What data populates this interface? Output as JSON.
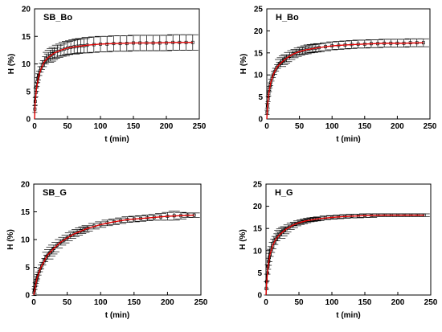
{
  "chart_data": [
    {
      "type": "scatter",
      "title": "SB_Bo",
      "xlabel": "t (min)",
      "ylabel": "H (%)",
      "xlim": [
        0,
        250
      ],
      "ylim": [
        0,
        20
      ],
      "xticks": [
        0,
        50,
        100,
        150,
        200,
        250
      ],
      "yticks": [
        0,
        5,
        10,
        15,
        20
      ],
      "colors": {
        "points": "#000000",
        "fit": "#e00000"
      },
      "x": [
        0.5,
        1,
        2,
        3,
        4,
        5,
        6,
        8,
        10,
        12,
        15,
        18,
        21,
        24,
        27,
        30,
        35,
        40,
        45,
        50,
        55,
        60,
        65,
        70,
        75,
        80,
        90,
        100,
        110,
        120,
        130,
        140,
        150,
        160,
        170,
        180,
        190,
        200,
        210,
        220,
        230,
        240
      ],
      "y": [
        1.8,
        3.2,
        4.8,
        5.8,
        6.7,
        7.4,
        7.9,
        8.7,
        9.3,
        9.8,
        10.4,
        10.9,
        11.2,
        11.5,
        11.8,
        12.0,
        12.3,
        12.5,
        12.7,
        12.9,
        13.0,
        13.1,
        13.2,
        13.3,
        13.3,
        13.4,
        13.5,
        13.6,
        13.6,
        13.7,
        13.7,
        13.7,
        13.8,
        13.8,
        13.8,
        13.8,
        13.8,
        13.8,
        13.9,
        13.9,
        13.9,
        13.9
      ],
      "err": [
        0.6,
        0.7,
        0.8,
        0.8,
        0.8,
        0.8,
        0.8,
        0.8,
        0.8,
        0.8,
        0.9,
        0.9,
        0.9,
        1.0,
        1.0,
        1.0,
        1.1,
        1.1,
        1.2,
        1.2,
        1.2,
        1.3,
        1.3,
        1.3,
        1.3,
        1.4,
        1.4,
        1.4,
        1.4,
        1.4,
        1.4,
        1.4,
        1.4,
        1.4,
        1.4,
        1.4,
        1.4,
        1.4,
        1.4,
        1.4,
        1.4,
        1.4
      ],
      "fit_x": [
        0,
        1,
        3,
        6,
        10,
        15,
        20,
        30,
        40,
        50,
        60,
        80,
        100,
        120,
        150,
        180,
        210,
        240
      ],
      "fit_y": [
        0,
        3.0,
        5.6,
        7.6,
        9.2,
        10.4,
        11.1,
        12.0,
        12.5,
        12.9,
        13.1,
        13.4,
        13.6,
        13.7,
        13.8,
        13.8,
        13.9,
        13.9
      ]
    },
    {
      "type": "scatter",
      "title": "H_Bo",
      "xlabel": "t (min)",
      "ylabel": "H (%)",
      "xlim": [
        0,
        250
      ],
      "ylim": [
        0,
        25
      ],
      "xticks": [
        0,
        50,
        100,
        150,
        200,
        250
      ],
      "yticks": [
        0,
        5,
        10,
        15,
        20,
        25
      ],
      "colors": {
        "points": "#000000",
        "fit": "#e00000"
      },
      "x": [
        0.5,
        1,
        2,
        3,
        4,
        5,
        6,
        8,
        10,
        12,
        15,
        18,
        21,
        24,
        27,
        30,
        35,
        40,
        45,
        50,
        55,
        60,
        65,
        70,
        75,
        80,
        90,
        100,
        110,
        120,
        130,
        140,
        150,
        160,
        170,
        180,
        190,
        200,
        210,
        220,
        230,
        240
      ],
      "y": [
        1.5,
        3.0,
        4.5,
        5.8,
        6.8,
        7.6,
        8.3,
        9.3,
        10.1,
        10.8,
        11.6,
        12.2,
        12.7,
        13.1,
        13.5,
        13.8,
        14.3,
        14.7,
        15.0,
        15.3,
        15.5,
        15.7,
        15.9,
        16.0,
        16.1,
        16.2,
        16.4,
        16.6,
        16.7,
        16.8,
        16.9,
        17.0,
        17.0,
        17.1,
        17.1,
        17.2,
        17.2,
        17.2,
        17.2,
        17.3,
        17.3,
        17.3
      ],
      "err": [
        0.5,
        0.5,
        0.6,
        0.6,
        0.6,
        0.6,
        0.7,
        0.7,
        0.7,
        0.7,
        0.7,
        0.7,
        0.8,
        0.8,
        0.8,
        0.8,
        0.8,
        0.8,
        0.8,
        0.8,
        0.8,
        0.9,
        0.9,
        0.9,
        0.9,
        0.9,
        0.9,
        0.9,
        0.9,
        0.9,
        0.9,
        0.9,
        0.9,
        0.9,
        0.9,
        0.9,
        0.9,
        0.9,
        0.9,
        0.9,
        0.9,
        0.9
      ],
      "fit_x": [
        0,
        1,
        3,
        6,
        10,
        15,
        20,
        30,
        40,
        50,
        60,
        80,
        100,
        120,
        150,
        180,
        210,
        240
      ],
      "fit_y": [
        0,
        2.8,
        5.8,
        8.3,
        10.1,
        11.6,
        12.5,
        13.8,
        14.7,
        15.3,
        15.7,
        16.2,
        16.6,
        16.8,
        17.0,
        17.2,
        17.2,
        17.3
      ]
    },
    {
      "type": "scatter",
      "title": "SB_G",
      "xlabel": "t (min)",
      "ylabel": "H (%)",
      "xlim": [
        0,
        250
      ],
      "ylim": [
        0,
        20
      ],
      "xticks": [
        0,
        50,
        100,
        150,
        200,
        250
      ],
      "yticks": [
        0,
        5,
        10,
        15,
        20
      ],
      "colors": {
        "points": "#000000",
        "fit": "#e00000"
      },
      "x": [
        0.5,
        1,
        2,
        3,
        4,
        5,
        6,
        8,
        10,
        12,
        15,
        18,
        21,
        24,
        27,
        30,
        35,
        40,
        45,
        50,
        55,
        60,
        65,
        70,
        75,
        80,
        90,
        100,
        110,
        120,
        130,
        140,
        150,
        160,
        170,
        180,
        190,
        200,
        210,
        220,
        230,
        240
      ],
      "y": [
        0.5,
        0.9,
        1.6,
        2.2,
        2.7,
        3.1,
        3.5,
        4.2,
        4.8,
        5.3,
        6.0,
        6.6,
        7.1,
        7.6,
        8.0,
        8.4,
        9.0,
        9.5,
        9.9,
        10.3,
        10.7,
        11.0,
        11.3,
        11.6,
        11.8,
        12.0,
        12.4,
        12.7,
        13.0,
        13.2,
        13.4,
        13.6,
        13.7,
        13.8,
        13.9,
        14.0,
        14.1,
        14.2,
        14.3,
        14.3,
        14.4,
        14.4
      ],
      "err": [
        0.6,
        0.6,
        0.6,
        0.6,
        0.6,
        0.6,
        0.6,
        0.6,
        0.6,
        0.6,
        0.6,
        0.6,
        0.6,
        0.6,
        0.6,
        0.6,
        0.5,
        0.5,
        0.5,
        0.5,
        0.5,
        0.5,
        0.5,
        0.5,
        0.5,
        0.5,
        0.5,
        0.5,
        0.5,
        0.5,
        0.5,
        0.5,
        0.5,
        0.5,
        0.5,
        0.5,
        0.6,
        0.7,
        0.8,
        0.6,
        0.4,
        0.4
      ],
      "fit_x": [
        0,
        5,
        10,
        20,
        30,
        40,
        50,
        60,
        80,
        100,
        120,
        140,
        160,
        180,
        200,
        220,
        240
      ],
      "fit_y": [
        0,
        3.1,
        4.8,
        7.1,
        8.4,
        9.5,
        10.3,
        11.0,
        12.0,
        12.7,
        13.2,
        13.6,
        13.8,
        14.0,
        14.2,
        14.3,
        14.4
      ]
    },
    {
      "type": "scatter",
      "title": "H_G",
      "xlabel": "t (min)",
      "ylabel": "H (%)",
      "xlim": [
        0,
        250
      ],
      "ylim": [
        0,
        25
      ],
      "xticks": [
        0,
        50,
        100,
        150,
        200,
        250
      ],
      "yticks": [
        0,
        5,
        10,
        15,
        20,
        25
      ],
      "colors": {
        "points": "#000000",
        "fit": "#e00000"
      },
      "x": [
        0.5,
        1,
        2,
        3,
        4,
        5,
        6,
        8,
        10,
        12,
        15,
        18,
        21,
        24,
        27,
        30,
        35,
        40,
        45,
        50,
        55,
        60,
        65,
        70,
        75,
        80,
        90,
        100,
        110,
        120,
        130,
        140,
        150,
        160,
        170,
        180,
        190,
        200,
        210,
        220,
        230,
        240
      ],
      "y": [
        1.5,
        3.0,
        5.0,
        6.5,
        7.6,
        8.5,
        9.2,
        10.3,
        11.1,
        11.8,
        12.6,
        13.2,
        13.7,
        14.1,
        14.5,
        14.8,
        15.3,
        15.7,
        16.0,
        16.3,
        16.5,
        16.7,
        16.9,
        17.0,
        17.1,
        17.2,
        17.4,
        17.5,
        17.6,
        17.7,
        17.8,
        17.8,
        17.9,
        17.9,
        18.0,
        18.0,
        18.0,
        18.0,
        18.0,
        18.0,
        18.0,
        18.0
      ],
      "err": [
        1.5,
        1.7,
        1.8,
        1.8,
        1.8,
        1.8,
        1.7,
        1.6,
        1.5,
        1.4,
        1.2,
        1.0,
        0.9,
        0.8,
        0.7,
        0.6,
        0.5,
        0.5,
        0.4,
        0.4,
        0.4,
        0.4,
        0.4,
        0.4,
        0.4,
        0.4,
        0.4,
        0.4,
        0.4,
        0.4,
        0.4,
        0.4,
        0.4,
        0.4,
        0.3,
        0.3,
        0.3,
        0.3,
        0.3,
        0.3,
        0.3,
        0.3
      ],
      "fit_x": [
        0,
        1,
        3,
        6,
        10,
        15,
        20,
        30,
        40,
        50,
        60,
        80,
        100,
        120,
        150,
        180,
        210,
        240
      ],
      "fit_y": [
        0,
        2.8,
        6.3,
        9.1,
        11.1,
        12.6,
        13.5,
        14.8,
        15.7,
        16.3,
        16.7,
        17.2,
        17.5,
        17.7,
        17.9,
        18.0,
        18.0,
        18.0
      ]
    }
  ]
}
